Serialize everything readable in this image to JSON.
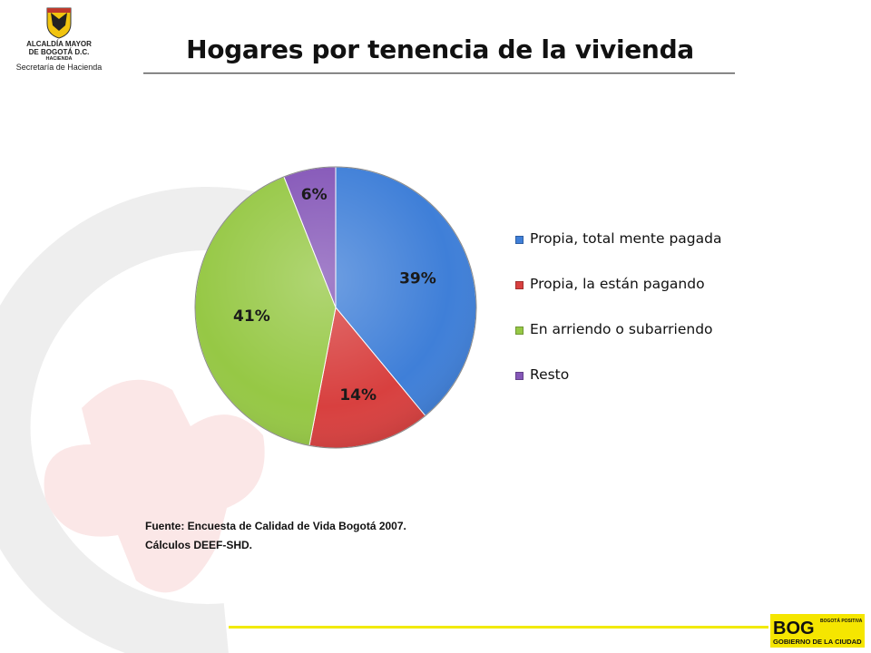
{
  "header": {
    "logo_lines": [
      "ALCALDÍA MAYOR",
      "DE BOGOTÁ D.C.",
      "HACIENDA",
      "Secretaría de Hacienda"
    ],
    "title": "Hogares por tenencia de la vivienda"
  },
  "source_note": {
    "line1": "Fuente: Encuesta de Calidad de Vida Bogotá 2007.",
    "line2": "Cálculos DEEF-SHD."
  },
  "footer_logo": {
    "mark": "BOG",
    "tagline": "BOGOTÁ POSITIVA",
    "text": "GOBIERNO DE LA CIUDAD"
  },
  "colors": {
    "blue": "#3f7fd8",
    "red": "#d8403f",
    "green": "#96c845",
    "purple": "#8557b8",
    "accent_yellow": "#f2ea00"
  },
  "chart_data": {
    "type": "pie",
    "title": "Hogares por tenencia de la vivienda",
    "categories": [
      "Propia, total mente pagada",
      "Propia, la están pagando",
      "En arriendo o subarriendo",
      "Resto"
    ],
    "values": [
      39,
      14,
      41,
      6
    ],
    "labels": [
      "39%",
      "14%",
      "41%",
      "6%"
    ],
    "colors": [
      "#3f7fd8",
      "#d8403f",
      "#96c845",
      "#8557b8"
    ],
    "legend_position": "right"
  }
}
